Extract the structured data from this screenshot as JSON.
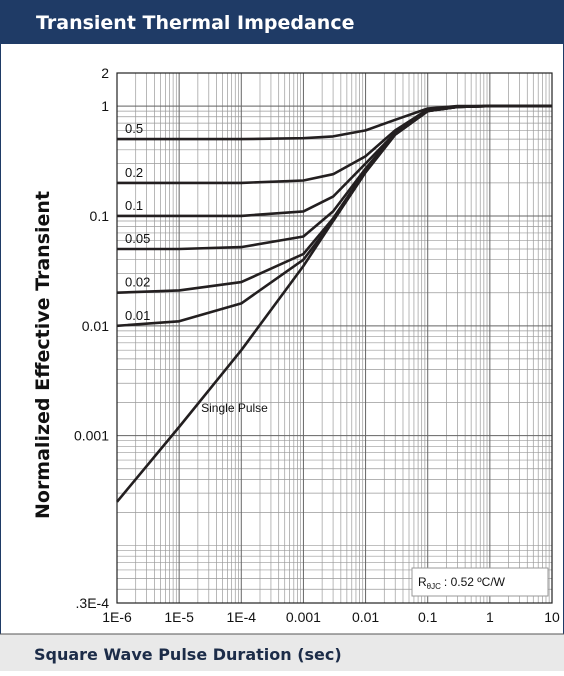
{
  "chart_data": {
    "type": "line",
    "title": "Transient Thermal Impedance",
    "ylabel": "Normalized Effective Transient",
    "xlabel": "Square Wave Pulse Duration (sec)",
    "log_x": true,
    "log_y": true,
    "grid": true,
    "xlim": [
      1e-06,
      10
    ],
    "xticks": [
      {
        "value": 1e-06,
        "label": "1E-6"
      },
      {
        "value": 1e-05,
        "label": "1E-5"
      },
      {
        "value": 0.0001,
        "label": "1E-4"
      },
      0.001,
      0.01,
      0.1,
      1,
      10
    ],
    "ylim": [
      3e-05,
      2
    ],
    "yticks": [
      2,
      1,
      0.1,
      0.01,
      0.001,
      {
        "value": 3e-05,
        "label": ".3E-4"
      }
    ],
    "x": [
      1e-06,
      1e-05,
      0.0001,
      0.001,
      0.003,
      0.01,
      0.03,
      0.1,
      0.3,
      1,
      10
    ],
    "series": [
      {
        "name": "0.5",
        "color": "#231f20",
        "values": [
          0.5,
          0.5,
          0.5,
          0.51,
          0.53,
          0.6,
          0.75,
          0.95,
          1,
          1,
          1
        ]
      },
      {
        "name": "0.2",
        "color": "#231f20",
        "values": [
          0.2,
          0.2,
          0.2,
          0.21,
          0.24,
          0.35,
          0.6,
          0.93,
          0.99,
          1,
          1
        ]
      },
      {
        "name": "0.1",
        "color": "#231f20",
        "values": [
          0.1,
          0.1,
          0.1,
          0.11,
          0.15,
          0.3,
          0.57,
          0.92,
          0.99,
          1,
          1
        ]
      },
      {
        "name": "0.05",
        "color": "#231f20",
        "values": [
          0.05,
          0.05,
          0.052,
          0.065,
          0.11,
          0.27,
          0.56,
          0.91,
          0.98,
          1,
          1
        ]
      },
      {
        "name": "0.02",
        "color": "#231f20",
        "values": [
          0.02,
          0.021,
          0.025,
          0.045,
          0.095,
          0.26,
          0.55,
          0.9,
          0.98,
          1,
          1
        ]
      },
      {
        "name": "0.01",
        "color": "#231f20",
        "values": [
          0.01,
          0.011,
          0.016,
          0.04,
          0.09,
          0.25,
          0.55,
          0.9,
          0.98,
          1,
          1
        ]
      },
      {
        "name": "Single Pulse",
        "color": "#231f20",
        "values": [
          0.00025,
          0.0012,
          0.006,
          0.035,
          0.09,
          0.25,
          0.55,
          0.9,
          0.98,
          1,
          1
        ]
      }
    ],
    "annotation": {
      "symbol": "R",
      "subscript": "θJC",
      "text": ": 0.52 ºC/W"
    }
  }
}
